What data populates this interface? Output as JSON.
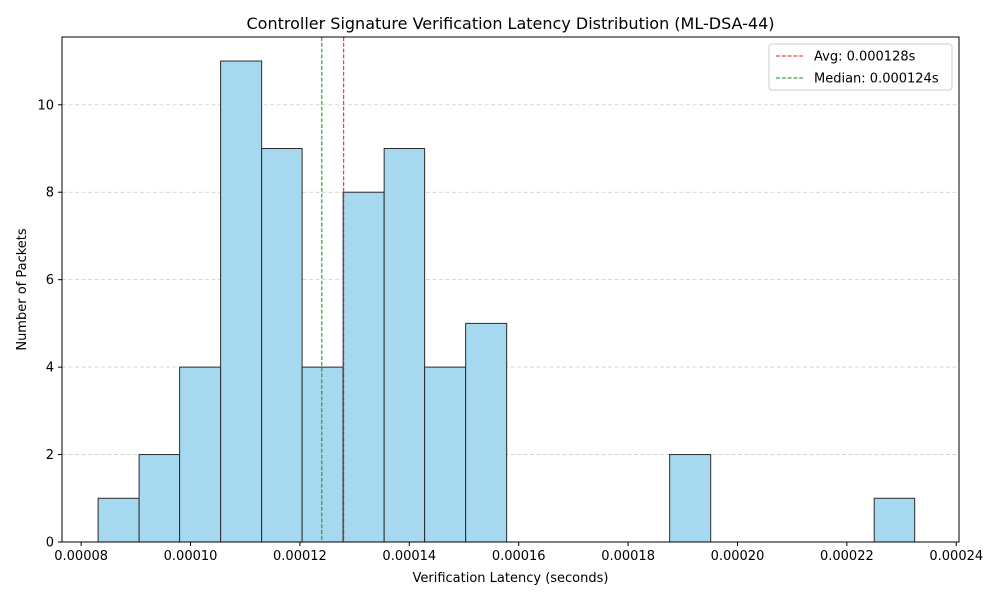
{
  "chart_data": {
    "type": "bar",
    "title": "Controller Signature Verification Latency Distribution (ML-DSA-44)",
    "xlabel": "Verification Latency (seconds)",
    "ylabel": "Number of Packets",
    "xlim": [
      7.65e-05,
      0.0002405
    ],
    "ylim": [
      0,
      11.55
    ],
    "xticks": [
      8e-05,
      0.0001,
      0.00012,
      0.00014,
      0.00016,
      0.00018,
      0.0002,
      0.00022,
      0.00024
    ],
    "xtick_labels": [
      "0.00008",
      "0.00010",
      "0.00012",
      "0.00014",
      "0.00016",
      "0.00018",
      "0.00020",
      "0.00022",
      "0.00024"
    ],
    "yticks": [
      0,
      2,
      4,
      6,
      8,
      10
    ],
    "ytick_labels": [
      "0",
      "2",
      "4",
      "6",
      "8",
      "10"
    ],
    "grid": "y-dashed",
    "bins": [
      {
        "start": 8.31e-05,
        "end": 9.06e-05,
        "count": 1
      },
      {
        "start": 9.06e-05,
        "end": 9.8e-05,
        "count": 2
      },
      {
        "start": 9.8e-05,
        "end": 0.0001055,
        "count": 4
      },
      {
        "start": 0.0001055,
        "end": 0.000113,
        "count": 11
      },
      {
        "start": 0.000113,
        "end": 0.0001204,
        "count": 9
      },
      {
        "start": 0.0001204,
        "end": 0.0001279,
        "count": 4
      },
      {
        "start": 0.0001279,
        "end": 0.0001354,
        "count": 8
      },
      {
        "start": 0.0001354,
        "end": 0.0001428,
        "count": 9
      },
      {
        "start": 0.0001428,
        "end": 0.0001503,
        "count": 4
      },
      {
        "start": 0.0001503,
        "end": 0.0001578,
        "count": 5
      },
      {
        "start": 0.0001578,
        "end": 0.0001652,
        "count": 0
      },
      {
        "start": 0.0001652,
        "end": 0.0001727,
        "count": 0
      },
      {
        "start": 0.0001727,
        "end": 0.0001802,
        "count": 0
      },
      {
        "start": 0.0001802,
        "end": 0.0001876,
        "count": 0
      },
      {
        "start": 0.0001876,
        "end": 0.0001951,
        "count": 2
      },
      {
        "start": 0.0001951,
        "end": 0.0002026,
        "count": 0
      },
      {
        "start": 0.0002026,
        "end": 0.00021,
        "count": 0
      },
      {
        "start": 0.00021,
        "end": 0.0002175,
        "count": 0
      },
      {
        "start": 0.0002175,
        "end": 0.000225,
        "count": 0
      },
      {
        "start": 0.000225,
        "end": 0.0002324,
        "count": 1
      }
    ],
    "bar_color": "#a6d9ef",
    "bar_edge_color": "#2b2b2b",
    "reference_lines": [
      {
        "label": "Avg: 0.000128s",
        "value": 0.000128,
        "color": "#e31a1c"
      },
      {
        "label": "Median: 0.000124s",
        "value": 0.000124,
        "color": "#1a8a1a"
      }
    ],
    "legend_position": "top-right"
  }
}
